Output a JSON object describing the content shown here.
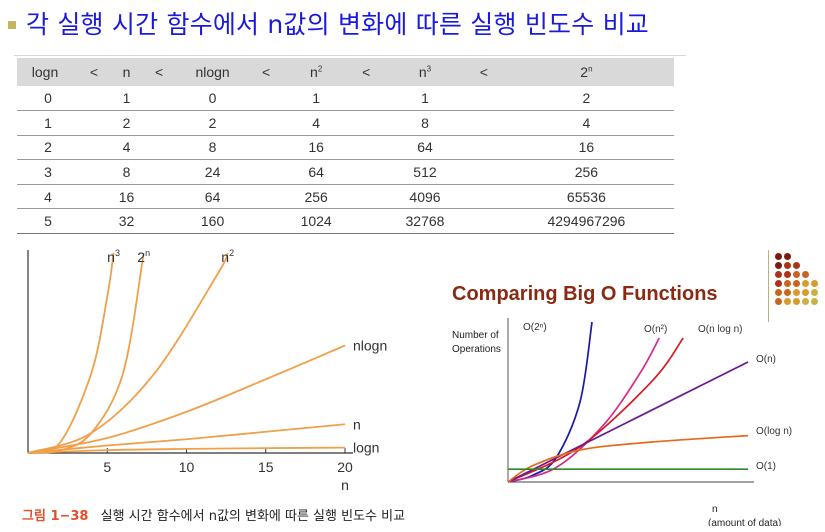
{
  "title": "각 실행 시간 함수에서 n값의 변화에 따른 실행 빈도수 비교",
  "table": {
    "headers": [
      {
        "base": "logn",
        "sup": ""
      },
      {
        "base": "<",
        "sup": ""
      },
      {
        "base": "n",
        "sup": ""
      },
      {
        "base": "<",
        "sup": ""
      },
      {
        "base": "nlogn",
        "sup": ""
      },
      {
        "base": "<",
        "sup": ""
      },
      {
        "base": "n",
        "sup": "2"
      },
      {
        "base": "<",
        "sup": ""
      },
      {
        "base": "n",
        "sup": "3"
      },
      {
        "base": "<",
        "sup": ""
      },
      {
        "base": "2",
        "sup": "n"
      }
    ],
    "rows": [
      [
        "0",
        "1",
        "0",
        "1",
        "1",
        "2"
      ],
      [
        "1",
        "2",
        "2",
        "4",
        "8",
        "4"
      ],
      [
        "2",
        "4",
        "8",
        "16",
        "64",
        "16"
      ],
      [
        "3",
        "8",
        "24",
        "64",
        "512",
        "256"
      ],
      [
        "4",
        "16",
        "64",
        "256",
        "4096",
        "65536"
      ],
      [
        "5",
        "32",
        "160",
        "1024",
        "32768",
        "4294967296"
      ]
    ]
  },
  "figure_caption": {
    "number": "그림 1−38",
    "text": "실행 시간 함수에서 n값의 변화에 따른 실행 빈도수 비교"
  },
  "chart_data": [
    {
      "type": "line",
      "title": "",
      "xlabel": "n",
      "ylabel": "",
      "xlim": [
        0,
        20
      ],
      "xticks": [
        "5",
        "10",
        "15",
        "20"
      ],
      "grid": false,
      "line_color": "#f0a04a",
      "series": [
        {
          "name": "2ⁿ",
          "label": "2",
          "label_sup": "n",
          "x": [
            0,
            2,
            4,
            6,
            7.3
          ],
          "y": [
            0,
            2,
            16,
            64,
            160
          ]
        },
        {
          "name": "n³",
          "label": "n",
          "label_sup": "3",
          "x": [
            0,
            2,
            4,
            5,
            5.4
          ],
          "y": [
            0,
            8,
            64,
            125,
            160
          ]
        },
        {
          "name": "n²",
          "label": "n",
          "label_sup": "2",
          "x": [
            0,
            4,
            8,
            12,
            12.6
          ],
          "y": [
            0,
            16,
            64,
            144,
            160
          ]
        },
        {
          "name": "nlogn",
          "label": "nlogn",
          "label_sup": "",
          "x": [
            0,
            5,
            10,
            15,
            20
          ],
          "y": [
            0,
            12,
            33,
            59,
            86
          ]
        },
        {
          "name": "n",
          "label": "n",
          "label_sup": "",
          "x": [
            0,
            5,
            10,
            15,
            20
          ],
          "y": [
            0,
            6,
            11,
            17,
            23
          ]
        },
        {
          "name": "logn",
          "label": "logn",
          "label_sup": "",
          "x": [
            0,
            5,
            10,
            15,
            20
          ],
          "y": [
            0,
            2.3,
            3.3,
            3.9,
            4.3
          ]
        }
      ]
    },
    {
      "type": "line",
      "title": "Comparing Big O Functions",
      "xlabel": "n",
      "xlabel_note": "(amount of data)",
      "ylabel": "Number of Operations",
      "ylabel_lines": [
        "Number of",
        "Operations"
      ],
      "xlim": [
        0,
        10
      ],
      "ylim": [
        0,
        10
      ],
      "grid": false,
      "series": [
        {
          "name": "O(2ⁿ)",
          "label": "O(2ⁿ)",
          "color": "#1a1aa8",
          "x": [
            0,
            1,
            2,
            3,
            3.5
          ],
          "y": [
            0,
            0.4,
            1.5,
            5,
            10
          ]
        },
        {
          "name": "O(n²)",
          "label": "O(n²)",
          "color": "#d42a8a",
          "x": [
            0,
            2,
            4,
            5.5,
            6.3
          ],
          "y": [
            0,
            0.9,
            3.6,
            6.8,
            9
          ]
        },
        {
          "name": "O(n log n)",
          "label": "O(n log n)",
          "color": "#d41c24",
          "x": [
            0,
            3,
            6,
            7.3
          ],
          "y": [
            0,
            2.2,
            6.3,
            9
          ]
        },
        {
          "name": "O(n)",
          "label": "O(n)",
          "color": "#6a1a8a",
          "x": [
            0,
            10
          ],
          "y": [
            0,
            7.5
          ]
        },
        {
          "name": "O(log n)",
          "label": "O(log n)",
          "color": "#e66a1a",
          "x": [
            0,
            1,
            3,
            6,
            10
          ],
          "y": [
            0,
            1,
            2,
            2.5,
            2.9
          ]
        },
        {
          "name": "O(1)",
          "label": "O(1)",
          "color": "#2a8a2a",
          "x": [
            0,
            10
          ],
          "y": [
            0.8,
            0.8
          ]
        }
      ]
    }
  ],
  "decoration": {
    "dot_colors": [
      "#7a1a10",
      "#a8341a",
      "#c8641e",
      "#d89a2a",
      "#c8b046"
    ]
  }
}
